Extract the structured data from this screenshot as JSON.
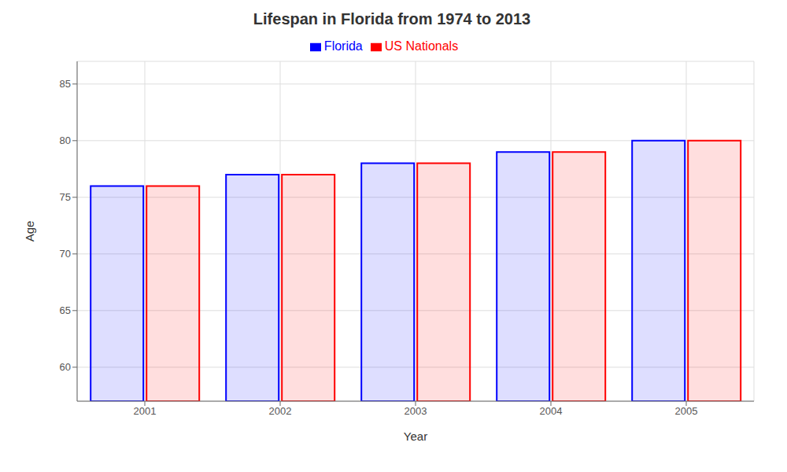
{
  "chart_data": {
    "type": "bar",
    "title": "Lifespan in Florida from 1974 to 2013",
    "x_label": "Year",
    "y_label": "Age",
    "categories": [
      "2001",
      "2002",
      "2003",
      "2004",
      "2005"
    ],
    "series": [
      {
        "name": "Florida",
        "color": "#0000ff",
        "values": [
          76,
          77,
          78,
          79,
          80
        ]
      },
      {
        "name": "US Nationals",
        "color": "#ff0000",
        "values": [
          76,
          77,
          78,
          79,
          80
        ]
      }
    ],
    "ylim": [
      57,
      87
    ],
    "yticks": [
      60,
      65,
      70,
      75,
      80,
      85
    ],
    "grid": true,
    "legend": "top"
  }
}
